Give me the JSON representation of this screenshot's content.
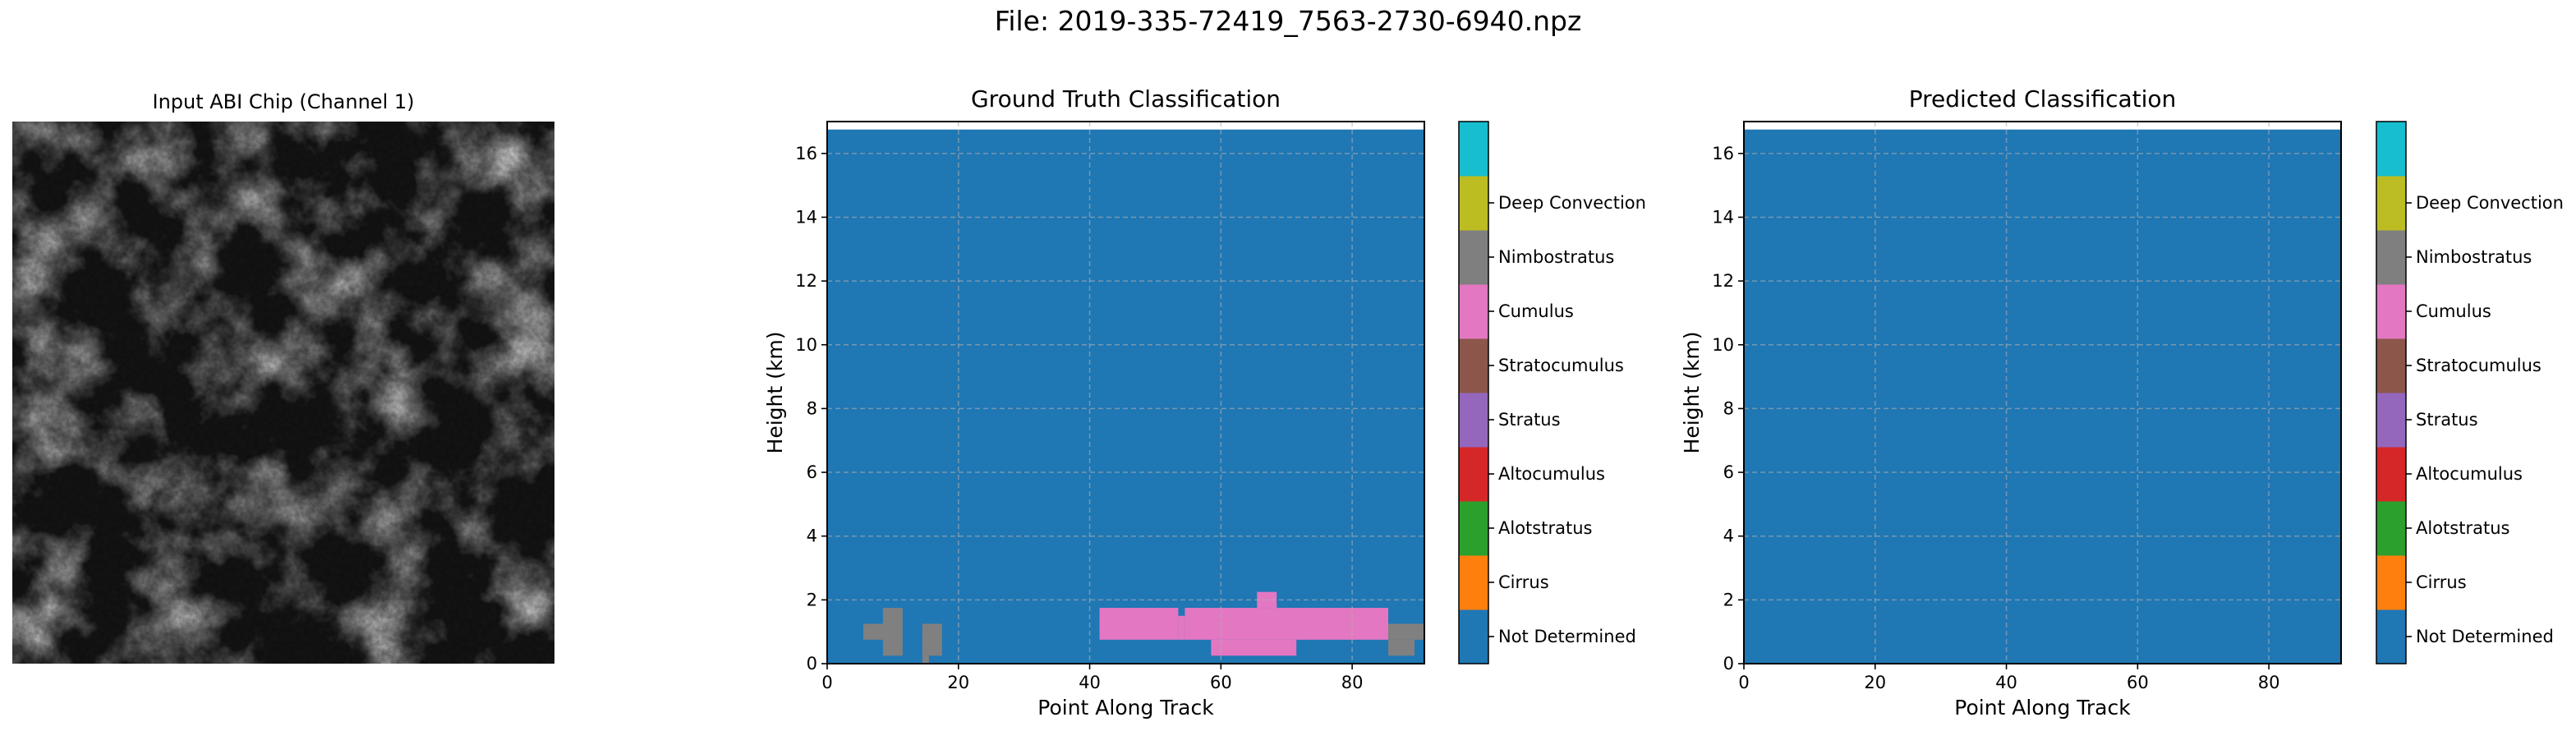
{
  "figure": {
    "suptitle": "File: 2019-335-72419_7563-2730-6940.npz"
  },
  "input_chip": {
    "title": "Input ABI Chip (Channel 1)"
  },
  "chart_data": [
    {
      "type": "heatmap",
      "title": "Ground Truth Classification",
      "xlabel": "Point Along Track",
      "ylabel": "Height (km)",
      "xlim": [
        0,
        91
      ],
      "ylim": [
        0,
        17
      ],
      "xticks": [
        0,
        20,
        40,
        60,
        80
      ],
      "yticks": [
        0,
        2,
        4,
        6,
        8,
        10,
        12,
        14,
        16
      ],
      "grid": true,
      "background_class": "Not Determined",
      "top_of_data_km": 16.75,
      "regions": [
        {
          "class": "Cumulus",
          "x0": 5.5,
          "x1": 9.5,
          "y0": 0.75,
          "y1": 1.25
        },
        {
          "class": "Cumulus",
          "x0": 8.5,
          "x1": 11.5,
          "y0": 1.25,
          "y1": 1.75
        },
        {
          "class": "Cumulus",
          "x0": 8.5,
          "x1": 11.5,
          "y0": 0.25,
          "y1": 1.25
        },
        {
          "class": "Cumulus",
          "x0": 14.5,
          "x1": 17.5,
          "y0": 0.25,
          "y1": 1.25
        },
        {
          "class": "Cumulus",
          "x0": 14.5,
          "x1": 15.5,
          "y0": 0.0,
          "y1": 0.25
        },
        {
          "class": "Stratocumulus",
          "x0": 41.5,
          "x1": 53.5,
          "y0": 0.75,
          "y1": 1.75
        },
        {
          "class": "Stratocumulus",
          "x0": 54.5,
          "x1": 85.5,
          "y0": 0.75,
          "y1": 1.75
        },
        {
          "class": "Stratocumulus",
          "x0": 53.5,
          "x1": 54.5,
          "y0": 0.75,
          "y1": 1.5
        },
        {
          "class": "Stratocumulus",
          "x0": 58.5,
          "x1": 71.5,
          "y0": 0.25,
          "y1": 0.75
        },
        {
          "class": "Stratocumulus",
          "x0": 65.5,
          "x1": 68.5,
          "y0": 1.75,
          "y1": 2.25
        },
        {
          "class": "Cumulus",
          "x0": 85.5,
          "x1": 91,
          "y0": 0.75,
          "y1": 1.25
        },
        {
          "class": "Cumulus",
          "x0": 85.5,
          "x1": 89.5,
          "y0": 0.25,
          "y1": 0.75
        }
      ]
    },
    {
      "type": "heatmap",
      "title": "Predicted Classification",
      "xlabel": "Point Along Track",
      "ylabel": "Height (km)",
      "xlim": [
        0,
        91
      ],
      "ylim": [
        0,
        17
      ],
      "xticks": [
        0,
        20,
        40,
        60,
        80
      ],
      "yticks": [
        0,
        2,
        4,
        6,
        8,
        10,
        12,
        14,
        16
      ],
      "grid": true,
      "background_class": "Not Determined",
      "top_of_data_km": 16.75,
      "regions": []
    }
  ],
  "colorbar": {
    "classes": [
      {
        "label": "Not Determined",
        "color": "#1f77b4"
      },
      {
        "label": "Cirrus",
        "color": "#ff7f0e"
      },
      {
        "label": "Alotstratus",
        "color": "#2ca02c"
      },
      {
        "label": "Altocumulus",
        "color": "#d62728"
      },
      {
        "label": "Stratus",
        "color": "#9467bd"
      },
      {
        "label": "Stratocumulus",
        "color": "#8c564b"
      },
      {
        "label": "Cumulus",
        "color": "#e377c2"
      },
      {
        "label": "Nimbostratus",
        "color": "#7f7f7f"
      },
      {
        "label": "Deep Convection",
        "color": "#bcbd22"
      }
    ],
    "segment_colors": [
      "#1f77b4",
      "#ff7f0e",
      "#2ca02c",
      "#d62728",
      "#9467bd",
      "#8c564b",
      "#e377c2",
      "#7f7f7f",
      "#bcbd22",
      "#17becf"
    ],
    "class_display_colors": {
      "Cumulus": "#808080",
      "Stratocumulus": "#e377c2",
      "Not Determined": "#1f77b4"
    }
  }
}
